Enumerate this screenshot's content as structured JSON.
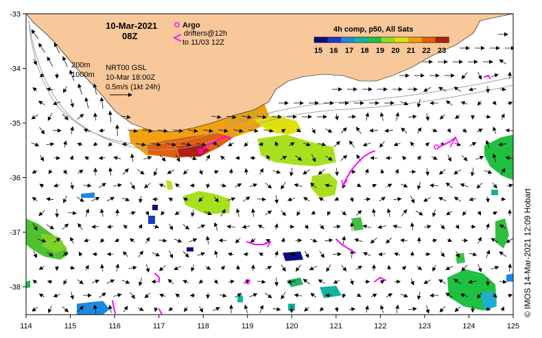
{
  "title": {
    "date": "10-Mar-2021",
    "time": "08Z"
  },
  "legend": {
    "argo_label": "Argo",
    "drifters_label_1": "drifters@12h",
    "drifters_label_2": "to 11/03 12Z"
  },
  "colorbar": {
    "title": "4h comp, p50, All Sats",
    "ticks": [
      "15",
      "16",
      "17",
      "18",
      "19",
      "20",
      "21",
      "22",
      "23"
    ],
    "colors": [
      "#0c0c80",
      "#1a3cc8",
      "#1e88e0",
      "#10b4a0",
      "#20c040",
      "#90e020",
      "#e0e010",
      "#f0a010",
      "#e06010",
      "#b02010"
    ]
  },
  "info": {
    "isobath_1": "200m",
    "isobath_2": "1000m",
    "product": "NRT00 GSL",
    "product_time": "10-Mar 18:00Z",
    "scale": "0.5m/s (1kt 24h)"
  },
  "x_ticks": [
    "114",
    "115",
    "116",
    "117",
    "118",
    "119",
    "120",
    "121",
    "122",
    "123",
    "124",
    "125"
  ],
  "y_ticks": [
    "-33",
    "-34",
    "-35",
    "-36",
    "-37",
    "-38"
  ],
  "credit": "© IMOS 14-Mar-2021 12:09 Hobart",
  "colors": {
    "land": "#f8c89a",
    "argo": "#ff00ff",
    "drifter": "#ff00ff"
  }
}
